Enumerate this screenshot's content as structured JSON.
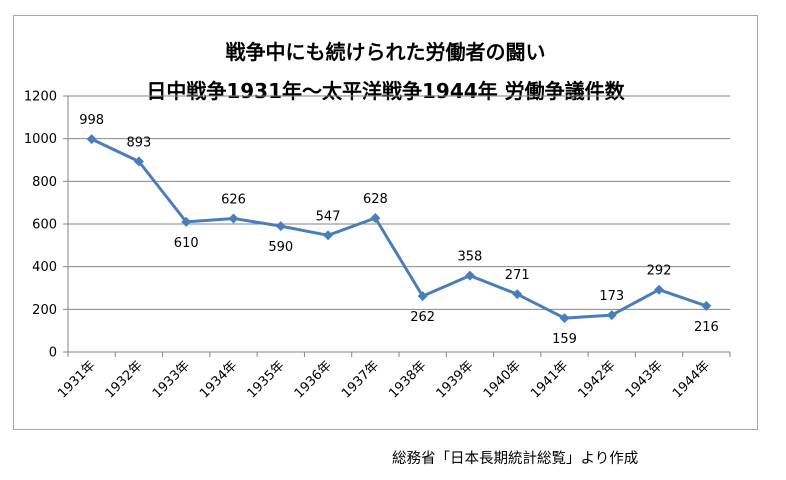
{
  "chart_data": {
    "type": "line",
    "title": "戦争中にも続けられた労働者の闘い",
    "subtitle": "日中戦争1931年～太平洋戦争1944年 労働争議件数",
    "categories": [
      "1931年",
      "1932年",
      "1933年",
      "1934年",
      "1935年",
      "1936年",
      "1937年",
      "1938年",
      "1939年",
      "1940年",
      "1941年",
      "1942年",
      "1943年",
      "1944年"
    ],
    "series": [
      {
        "values": [
          998,
          893,
          610,
          626,
          590,
          547,
          628,
          262,
          358,
          271,
          159,
          173,
          292,
          216
        ],
        "color": "#4a7ebb",
        "marker": "diamond"
      }
    ],
    "label_positions": [
      "above",
      "above",
      "below",
      "above",
      "below",
      "above",
      "above",
      "below",
      "above",
      "above",
      "below",
      "above",
      "above",
      "below"
    ],
    "ylim": [
      0,
      1200
    ],
    "yticks": [
      0,
      200,
      400,
      600,
      800,
      1000,
      1200
    ],
    "grid": true,
    "xlabel": "",
    "ylabel": "",
    "source": "総務省「日本長期統計総覧」より作成"
  }
}
